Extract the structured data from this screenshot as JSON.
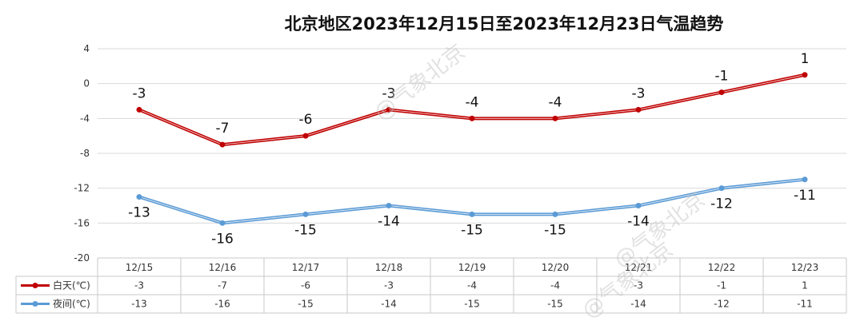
{
  "chart_data": {
    "type": "line",
    "title": "北京地区2023年12月15日至2023年12月23日气温趋势",
    "categories": [
      "12/15",
      "12/16",
      "12/17",
      "12/18",
      "12/19",
      "12/20",
      "12/21",
      "12/22",
      "12/23"
    ],
    "series": [
      {
        "name": "白天(℃)",
        "values": [
          -3,
          -7,
          -6,
          -3,
          -4,
          -4,
          -3,
          -1,
          1
        ],
        "color": "#c00000"
      },
      {
        "name": "夜间(℃)",
        "values": [
          -13,
          -16,
          -15,
          -14,
          -15,
          -15,
          -14,
          -12,
          -11
        ],
        "color": "#5b9bd5"
      }
    ],
    "yticks": [
      4,
      0,
      -4,
      -8,
      -12,
      -16,
      -20
    ],
    "ylim": [
      -20,
      4
    ],
    "grid": true,
    "legend": "data-table-left",
    "data_table": true
  },
  "watermark": "@气象北京"
}
